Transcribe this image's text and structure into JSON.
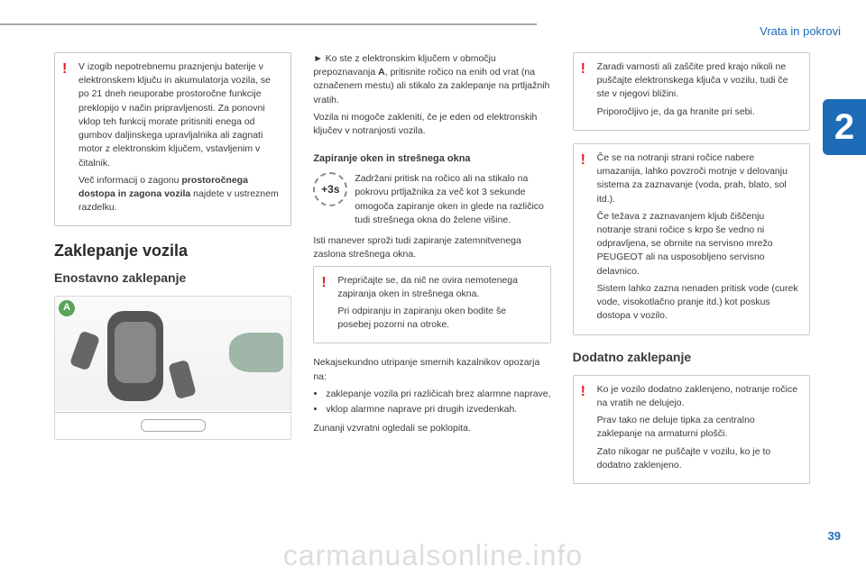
{
  "header": {
    "section": "Vrata in pokrovi",
    "chapter": "2",
    "page": "39",
    "watermark": "carmanualsonline.info"
  },
  "col1": {
    "callout1": {
      "p1": "V izogib nepotrebnemu praznjenju baterije v elektronskem ključu in akumulatorja vozila, se po 21 dneh neuporabe prostoročne funkcije preklopijo v način pripravljenosti. Za ponovni vklop teh funkcij morate pritisniti enega od gumbov daljinskega upravljalnika ali zagnati motor z elektronskim ključem, vstavljenim v čitalnik.",
      "p2a": "Več informacij o zagonu ",
      "p2b": "prostoročnega dostopa in zagona vozila",
      "p2c": " najdete v ustreznem razdelku."
    },
    "h2": "Zaklepanje vozila",
    "h3": "Enostavno zaklepanje",
    "badge": "A"
  },
  "col2": {
    "p1a": "► Ko ste z elektronskim ključem v območju prepoznavanja ",
    "p1b": "A",
    "p1c": ", pritisnite ročico na enih od vrat (na označenem mestu) ali stikalo za zaklepanje na prtljažnih vratih.",
    "p2": "Vozila ni mogoče zakleniti, če je eden od elektronskih ključev v notranjosti vozila.",
    "h4": "Zapiranje oken in strešnega okna",
    "icon_label": "+3s",
    "icon_text": "Zadržani pritisk na ročico ali na stikalo na pokrovu prtljažnika za več kot 3 sekunde omogoča zapiranje oken in glede na različico tudi strešnega okna do želene višine.",
    "p3": "Isti manever sproži tudi zapiranje zatemnitvenega zaslona strešnega okna.",
    "callout1": {
      "p1": "Prepričajte se, da nič ne ovira nemotenega zapiranja oken in strešnega okna.",
      "p2": "Pri odpiranju in zapiranju oken bodite še posebej pozorni na otroke."
    },
    "p4": "Nekajsekundno utripanje smernih kazalnikov opozarja na:",
    "li1": "zaklepanje vozila pri različicah brez alarmne naprave,",
    "li2": "vklop alarmne naprave pri drugih izvedenkah.",
    "p5": "Zunanji vzvratni ogledali se poklopita."
  },
  "col3": {
    "callout1": {
      "p1": "Zaradi varnosti ali zaščite pred krajo nikoli ne puščajte elektronskega ključa v vozilu, tudi če ste v njegovi bližini.",
      "p2": "Priporočljivo je, da ga hranite pri sebi."
    },
    "callout2": {
      "p1": "Če se na notranji strani ročice nabere umazanija, lahko povzroči motnje v delovanju sistema za zaznavanje (voda, prah, blato, sol itd.).",
      "p2": "Če težava z zaznavanjem kljub čiščenju notranje strani ročice s krpo še vedno ni odpravljena, se obrnite na servisno mrežo PEUGEOT ali na usposobljeno servisno delavnico.",
      "p3": "Sistem lahko zazna nenaden pritisk vode (curek vode, visokotlačno pranje itd.) kot poskus dostopa v vozilo."
    },
    "h3": "Dodatno zaklepanje",
    "callout3": {
      "p1": "Ko je vozilo dodatno zaklenjeno, notranje ročice na vratih ne delujejo.",
      "p2": "Prav tako ne deluje tipka za centralno zaklepanje na armaturni plošči.",
      "p3": "Zato nikogar ne puščajte v vozilu, ko je to dodatno zaklenjeno."
    }
  }
}
